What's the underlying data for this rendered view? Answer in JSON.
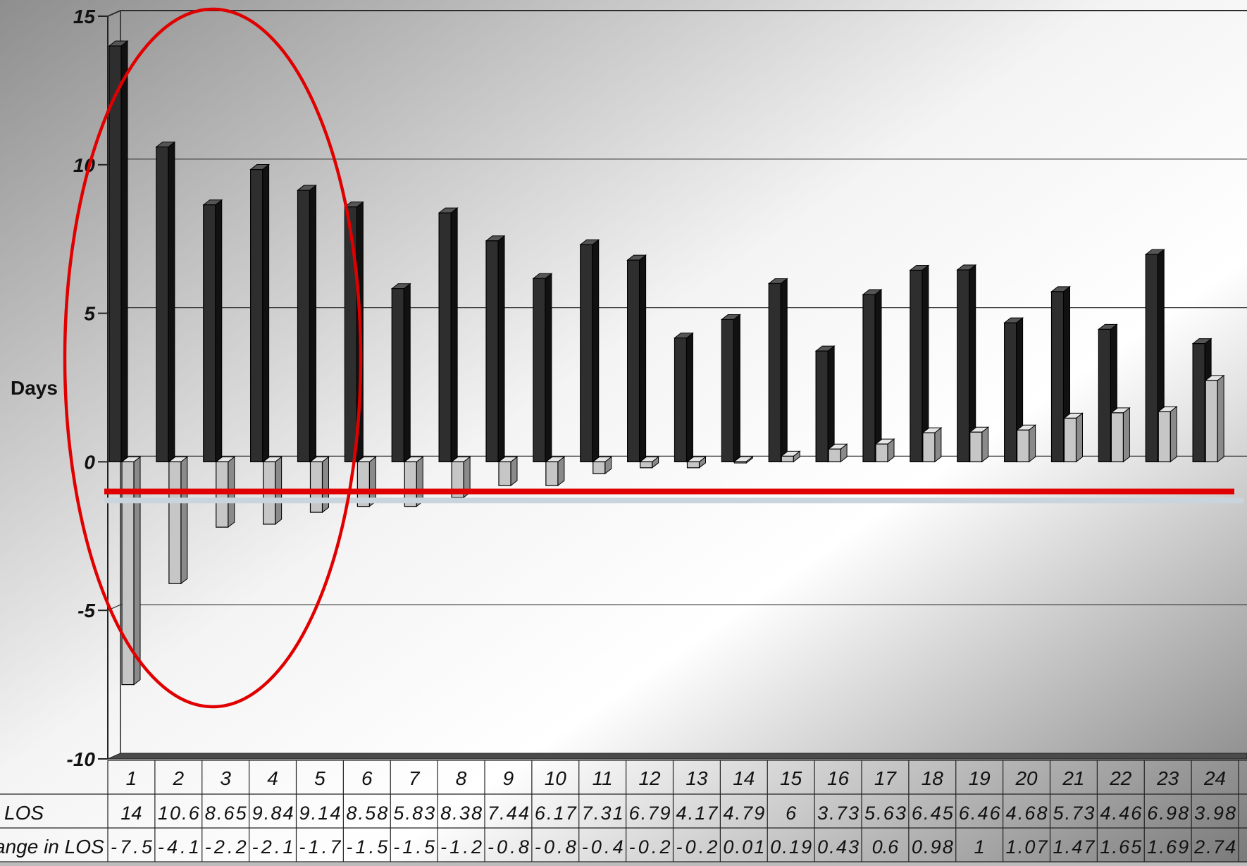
{
  "chart_data": {
    "type": "bar",
    "ylabel": "Days",
    "ylim": [
      -10,
      15
    ],
    "y_ticks": [
      "15",
      "10",
      "5",
      "0",
      "-5",
      "-10"
    ],
    "y_tick_values": [
      15,
      10,
      5,
      0,
      -5,
      -10
    ],
    "grid": true,
    "categories": [
      "1",
      "2",
      "3",
      "4",
      "5",
      "6",
      "7",
      "8",
      "9",
      "10",
      "11",
      "12",
      "13",
      "14",
      "15",
      "16",
      "17",
      "18",
      "19",
      "20",
      "21",
      "22",
      "23",
      "24"
    ],
    "series": [
      {
        "name": "l LOS",
        "color": "#2b2b2b",
        "values": [
          14,
          10.6,
          8.65,
          9.84,
          9.14,
          8.58,
          5.83,
          8.38,
          7.44,
          6.17,
          7.31,
          6.79,
          4.17,
          4.79,
          6,
          3.73,
          5.63,
          6.45,
          6.46,
          4.68,
          5.73,
          4.46,
          6.98,
          3.98
        ]
      },
      {
        "name": "ange in LOS",
        "color": "#c8c8c8",
        "values": [
          -7.5,
          -4.1,
          -2.2,
          -2.1,
          -1.7,
          -1.5,
          -1.5,
          -1.2,
          -0.8,
          -0.8,
          -0.4,
          -0.2,
          -0.2,
          0.01,
          0.19,
          0.43,
          0.6,
          0.98,
          1,
          1.07,
          1.47,
          1.65,
          1.69,
          2.74
        ]
      }
    ],
    "table": {
      "rows": [
        {
          "label": "l LOS",
          "cells": [
            "14",
            "10.6",
            "8.65",
            "9.84",
            "9.14",
            "8.58",
            "5.83",
            "8.38",
            "7.44",
            "6.17",
            "7.31",
            "6.79",
            "4.17",
            "4.79",
            "6",
            "3.73",
            "5.63",
            "6.45",
            "6.46",
            "4.68",
            "5.73",
            "4.46",
            "6.98",
            "3.98"
          ]
        },
        {
          "label": "ange in LOS",
          "cells": [
            "-7.5",
            "-4.1",
            "-2.2",
            "-2.1",
            "-1.7",
            "-1.5",
            "-1.5",
            "-1.2",
            "-0.8",
            "-0.8",
            "-0.4",
            "-0.2",
            "-0.2",
            "0.01",
            "0.19",
            "0.43",
            "0.6",
            "0.98",
            "1",
            "1.07",
            "1.47",
            "1.65",
            "1.69",
            "2.74"
          ]
        }
      ]
    },
    "annotations": {
      "highlight_ellipse": {
        "covers_categories": [
          "1",
          "2",
          "3",
          "4",
          "5"
        ],
        "color": "#e00000"
      },
      "red_reference_line": {
        "y": -1.0,
        "color": "#e00000"
      },
      "grey_reference_line": {
        "y": -1.3,
        "color": "#c9d4dc"
      }
    }
  }
}
